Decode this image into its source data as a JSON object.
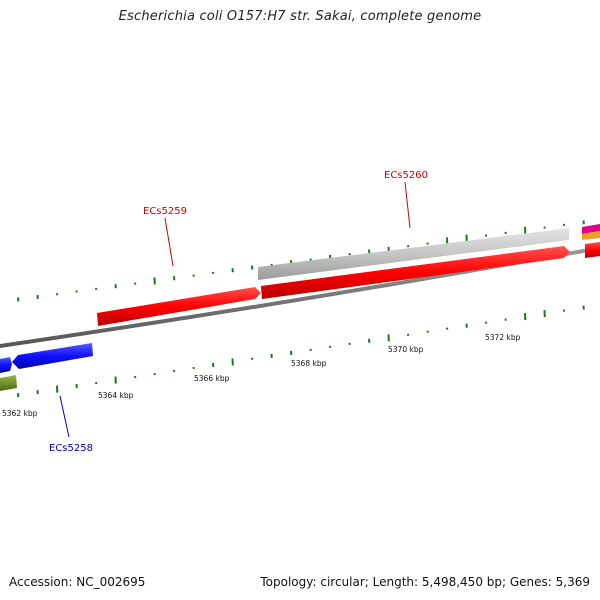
{
  "title": "Escherichia coli O157:H7 str. Sakai, complete genome",
  "footer": {
    "accession": "Accession: NC_002695",
    "summary": "Topology: circular; Length: 5,498,450 bp; Genes: 5,369"
  },
  "colors": {
    "cds_red": "#ff0000",
    "cds_blue": "#1a1aff",
    "cds_gray": "#c8c8c8",
    "cds_olive": "#6b8e23",
    "backbone": "#707070",
    "gc_tick": "#1a7a1a",
    "label_red": "#cc0000",
    "label_blue": "#0000cc"
  },
  "axis_labels": [
    {
      "text": "5362 kbp"
    },
    {
      "text": "5364 kbp"
    },
    {
      "text": "5366 kbp"
    },
    {
      "text": "5368 kbp"
    },
    {
      "text": "5370 kbp"
    },
    {
      "text": "5372 kbp"
    }
  ],
  "gene_labels": [
    {
      "text": "ECs5258"
    },
    {
      "text": "ECs5259"
    },
    {
      "text": "ECs5260"
    }
  ]
}
